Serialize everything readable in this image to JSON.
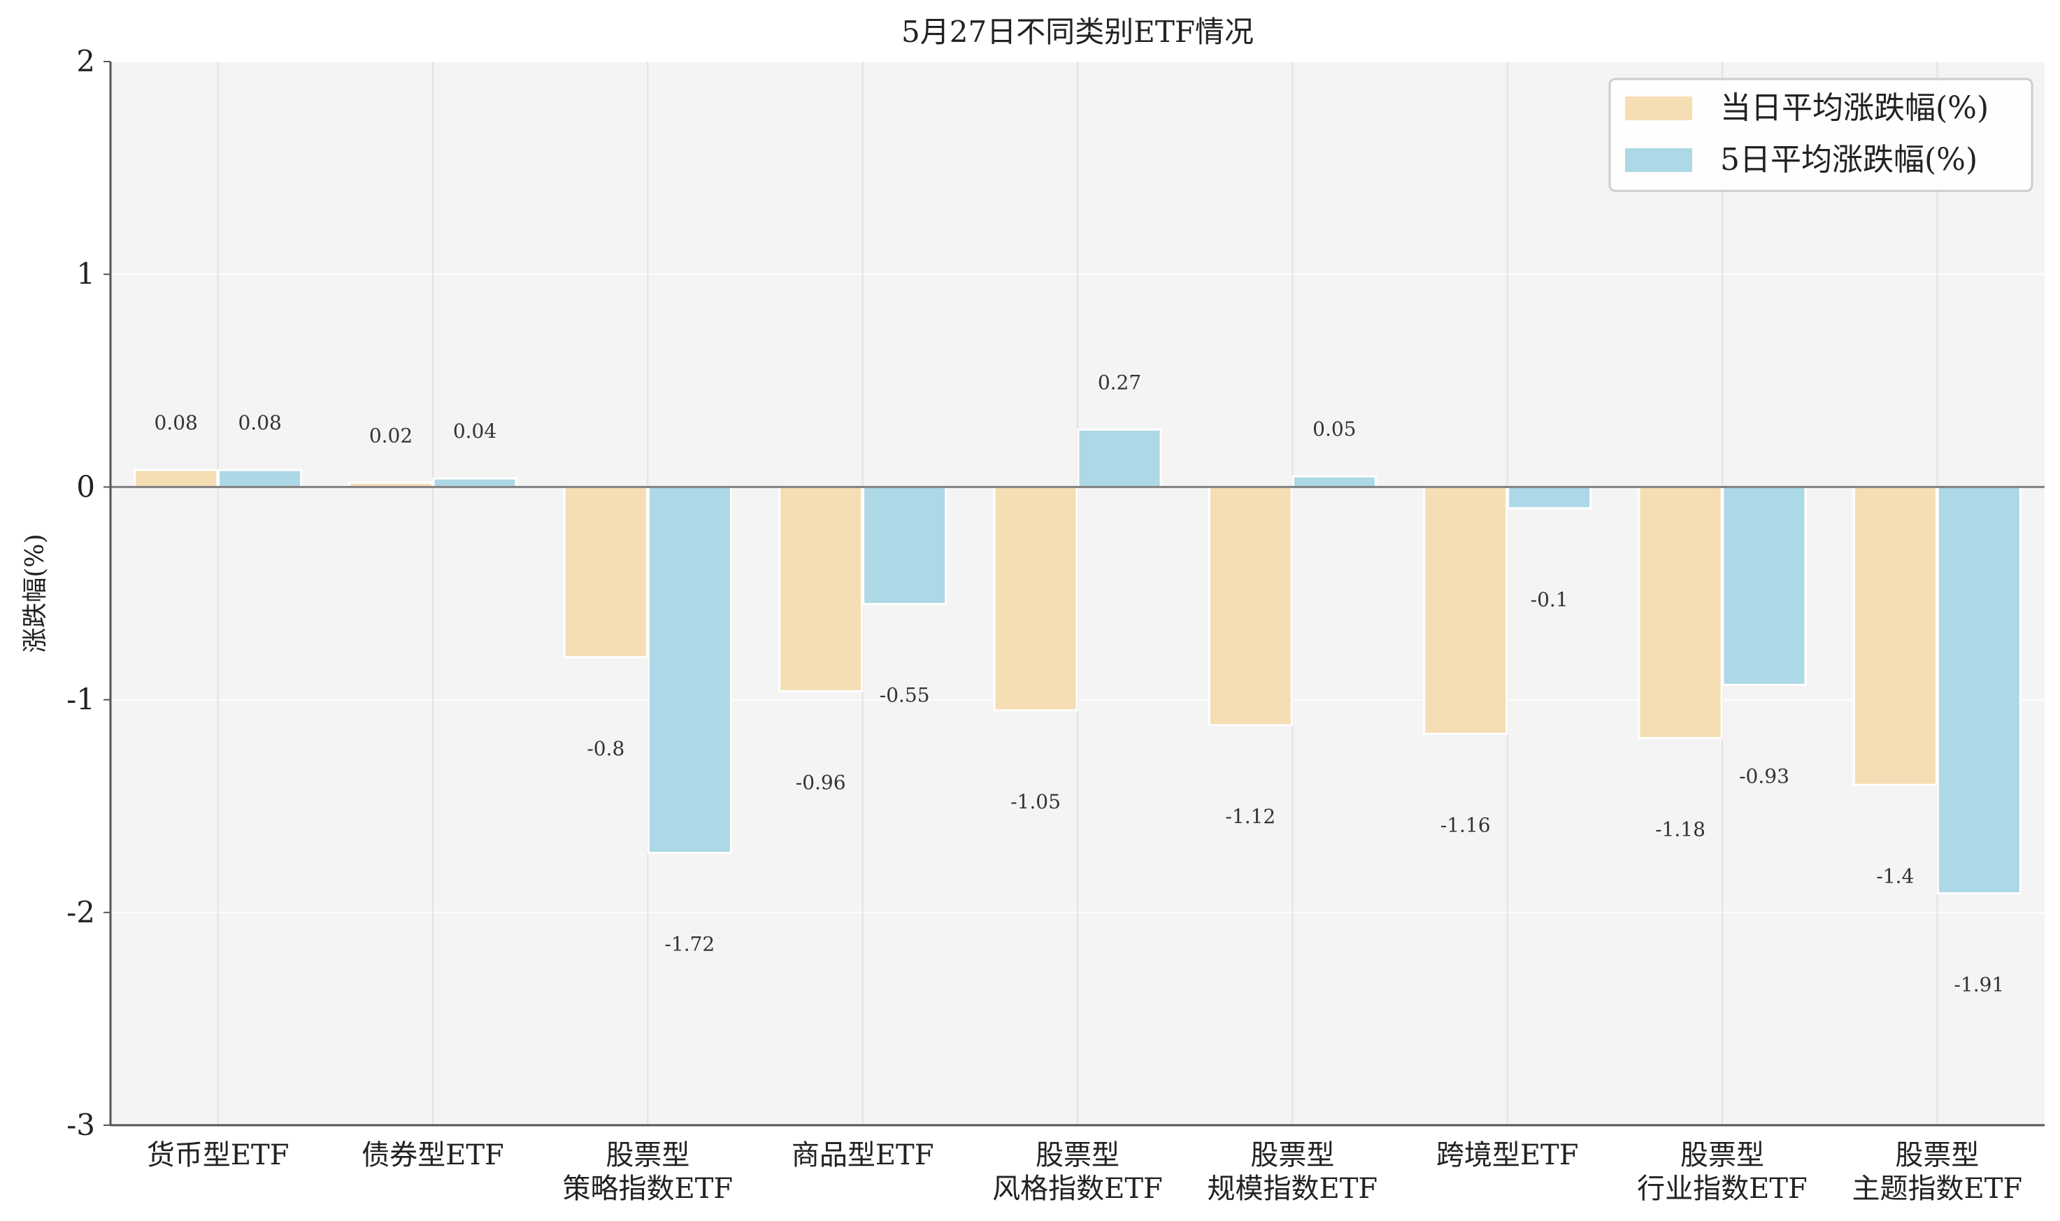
{
  "chart_data": {
    "type": "bar",
    "title": "5月27日不同类别ETF情况",
    "xlabel": "",
    "ylabel": "涨跌幅(%)",
    "ylim": [
      -3,
      2
    ],
    "yticks": [
      -3,
      -2,
      -1,
      0,
      1,
      2
    ],
    "grid": true,
    "legend_position": "top-right",
    "categories": [
      [
        "货币型ETF"
      ],
      [
        "债券型ETF"
      ],
      [
        "股票型",
        "策略指数ETF"
      ],
      [
        "商品型ETF"
      ],
      [
        "股票型",
        "风格指数ETF"
      ],
      [
        "股票型",
        "规模指数ETF"
      ],
      [
        "跨境型ETF"
      ],
      [
        "股票型",
        "行业指数ETF"
      ],
      [
        "股票型",
        "主题指数ETF"
      ]
    ],
    "series": [
      {
        "name": "当日平均涨跌幅(%)",
        "color": "#f5deb3",
        "values": [
          0.08,
          0.02,
          -0.8,
          -0.96,
          -1.05,
          -1.12,
          -1.16,
          -1.18,
          -1.4
        ],
        "labels": [
          "0.08",
          "0.02",
          "-0.8",
          "-0.96",
          "-1.05",
          "-1.12",
          "-1.16",
          "-1.18",
          "-1.4"
        ]
      },
      {
        "name": "5日平均涨跌幅(%)",
        "color": "#add8e6",
        "values": [
          0.08,
          0.04,
          -1.72,
          -0.55,
          0.27,
          0.05,
          -0.1,
          -0.93,
          -1.91
        ],
        "labels": [
          "0.08",
          "0.04",
          "-1.72",
          "-0.55",
          "0.27",
          "0.05",
          "-0.1",
          "-0.93",
          "-1.91"
        ]
      }
    ]
  }
}
